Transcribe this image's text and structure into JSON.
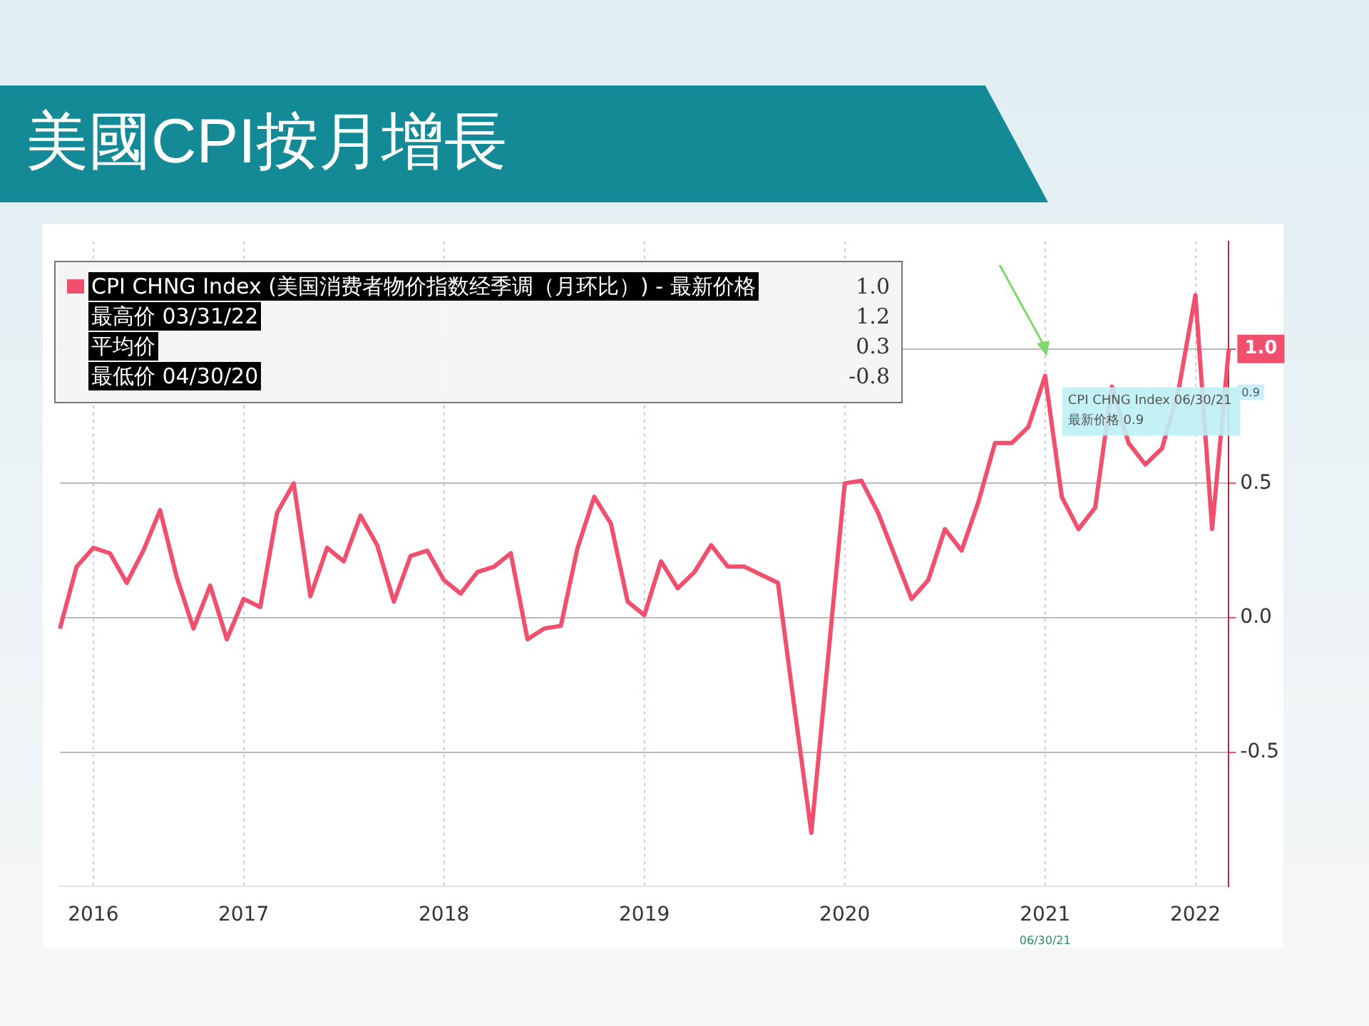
{
  "chart_data": {
    "type": "line",
    "title": "美國CPI按月增長",
    "categories": [
      null,
      null,
      "2016",
      null,
      null,
      null,
      null,
      null,
      null,
      null,
      null,
      "2017",
      null,
      null,
      null,
      null,
      null,
      null,
      null,
      null,
      null,
      null,
      null,
      "2018",
      null,
      null,
      null,
      null,
      null,
      null,
      null,
      null,
      null,
      null,
      null,
      "2019",
      null,
      null,
      null,
      null,
      null,
      null,
      null,
      null,
      null,
      null,
      null,
      "2020",
      null,
      null,
      null,
      null,
      null,
      null,
      null,
      null,
      null,
      null,
      null,
      "2021",
      null,
      null,
      null,
      null,
      null,
      null,
      null,
      null,
      "2022",
      null,
      null
    ],
    "series": [
      {
        "name": "CPI CHNG Index (美国消费者物价指数经季调（月环比）) - 最新价格",
        "color": "#f0506e",
        "values": [
          -0.04,
          0.19,
          0.26,
          0.24,
          0.13,
          0.25,
          0.4,
          0.15,
          -0.04,
          0.12,
          -0.08,
          0.07,
          0.04,
          0.39,
          0.5,
          0.08,
          0.26,
          0.21,
          0.38,
          0.27,
          0.06,
          0.23,
          0.25,
          0.14,
          0.09,
          0.17,
          0.19,
          0.24,
          -0.08,
          -0.04,
          -0.03,
          0.26,
          0.45,
          0.35,
          0.06,
          0.01,
          0.21,
          0.11,
          0.17,
          0.27,
          0.19,
          0.19,
          0.16,
          0.13,
          -0.34,
          -0.8,
          -0.15,
          0.5,
          0.51,
          0.39,
          0.23,
          0.07,
          0.14,
          0.33,
          0.25,
          0.43,
          0.65,
          0.65,
          0.71,
          0.9,
          0.45,
          0.33,
          0.41,
          0.86,
          0.65,
          0.57,
          0.63,
          0.85,
          1.2,
          0.33,
          1.0
        ]
      }
    ],
    "ylim": [
      -1.0,
      1.4
    ],
    "yticks": [
      -0.5,
      {
        "value": 0,
        "label": "0.0"
      },
      0.5,
      {
        "value": 1.0,
        "label": null
      }
    ],
    "grid": true,
    "legend": "top left",
    "marker": "none",
    "line_style": "solid",
    "annotations": [
      "1.0",
      "最高价 03/31/22",
      "1.2",
      "平均价",
      "0.3",
      "最低价 04/30/20",
      "-0.8",
      {
        "text": "CPI CHNG Index 06/30/21",
        "x": "2021",
        "y": 0.9
      },
      "最新价格 0.9",
      "06/30/21",
      "1.0",
      "0.9"
    ]
  }
}
